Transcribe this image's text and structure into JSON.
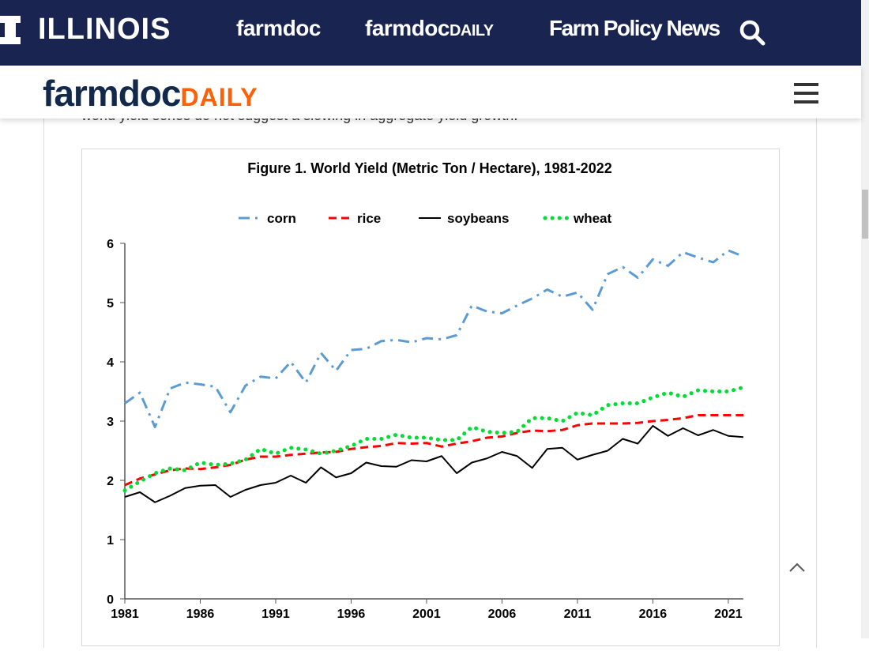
{
  "topbar": {
    "university": "ILLINOIS",
    "links": [
      "farmdoc",
      "farmdoc",
      "Farm Policy News"
    ],
    "daily_suffix": "DAILY",
    "search_icon": "search-icon"
  },
  "header": {
    "brand": "farmdoc",
    "brand_suffix": "DAILY",
    "menu_icon": "hamburger-icon"
  },
  "article": {
    "snippet": "world yield series do not suggest a slowing in aggregate yield growth."
  },
  "colors": {
    "navy": "#1a2450",
    "orange": "#ff5f05",
    "corn": "#5b9bd5",
    "rice": "#ff0000",
    "soybeans": "#000000",
    "wheat": "#00dd33"
  },
  "chart_data": {
    "type": "line",
    "title": "Figure 1.  World Yield (Metric  Ton / Hectare), 1981-2022",
    "xlabel": "",
    "ylabel": "",
    "ylim": [
      0,
      6
    ],
    "xlim": [
      1981,
      2022
    ],
    "yticks": [
      "0",
      "1",
      "2",
      "3",
      "4",
      "5",
      "6"
    ],
    "xticks": [
      "1981",
      "1986",
      "1991",
      "1996",
      "2001",
      "2006",
      "2011",
      "2016",
      "2021"
    ],
    "legend_position": "top",
    "x": [
      1981,
      1982,
      1983,
      1984,
      1985,
      1986,
      1987,
      1988,
      1989,
      1990,
      1991,
      1992,
      1993,
      1994,
      1995,
      1996,
      1997,
      1998,
      1999,
      2000,
      2001,
      2002,
      2003,
      2004,
      2005,
      2006,
      2007,
      2008,
      2009,
      2010,
      2011,
      2012,
      2013,
      2014,
      2015,
      2016,
      2017,
      2018,
      2019,
      2020,
      2021,
      2022
    ],
    "series": [
      {
        "name": "corn",
        "values": [
          3.3,
          3.48,
          2.9,
          3.55,
          3.65,
          3.62,
          3.58,
          3.15,
          3.6,
          3.75,
          3.72,
          4.0,
          3.65,
          4.15,
          3.85,
          4.2,
          4.22,
          4.35,
          4.37,
          4.33,
          4.4,
          4.38,
          4.45,
          4.95,
          4.85,
          4.82,
          4.95,
          5.07,
          5.22,
          5.1,
          5.17,
          4.88,
          5.48,
          5.6,
          5.42,
          5.73,
          5.62,
          5.85,
          5.76,
          5.68,
          5.88,
          5.78
        ]
      },
      {
        "name": "rice",
        "values": [
          1.92,
          2.03,
          2.1,
          2.17,
          2.2,
          2.19,
          2.22,
          2.26,
          2.35,
          2.4,
          2.4,
          2.43,
          2.45,
          2.47,
          2.48,
          2.53,
          2.56,
          2.58,
          2.63,
          2.62,
          2.63,
          2.57,
          2.62,
          2.66,
          2.72,
          2.74,
          2.8,
          2.84,
          2.83,
          2.85,
          2.93,
          2.96,
          2.96,
          2.96,
          2.97,
          3.0,
          3.02,
          3.05,
          3.1,
          3.1,
          3.1,
          3.1
        ]
      },
      {
        "name": "soybeans",
        "values": [
          1.72,
          1.8,
          1.63,
          1.74,
          1.87,
          1.91,
          1.92,
          1.72,
          1.84,
          1.92,
          1.96,
          2.08,
          1.96,
          2.22,
          2.05,
          2.12,
          2.3,
          2.24,
          2.23,
          2.34,
          2.32,
          2.41,
          2.12,
          2.3,
          2.37,
          2.48,
          2.41,
          2.21,
          2.53,
          2.55,
          2.35,
          2.43,
          2.5,
          2.7,
          2.62,
          2.92,
          2.75,
          2.88,
          2.76,
          2.85,
          2.75,
          2.73
        ]
      },
      {
        "name": "wheat",
        "values": [
          1.83,
          1.98,
          2.12,
          2.2,
          2.17,
          2.3,
          2.26,
          2.28,
          2.35,
          2.53,
          2.45,
          2.55,
          2.52,
          2.45,
          2.5,
          2.58,
          2.7,
          2.7,
          2.77,
          2.72,
          2.72,
          2.68,
          2.68,
          2.9,
          2.82,
          2.8,
          2.82,
          3.05,
          3.05,
          3.0,
          3.14,
          3.1,
          3.27,
          3.3,
          3.3,
          3.4,
          3.48,
          3.41,
          3.52,
          3.5,
          3.5,
          3.57
        ]
      }
    ]
  }
}
